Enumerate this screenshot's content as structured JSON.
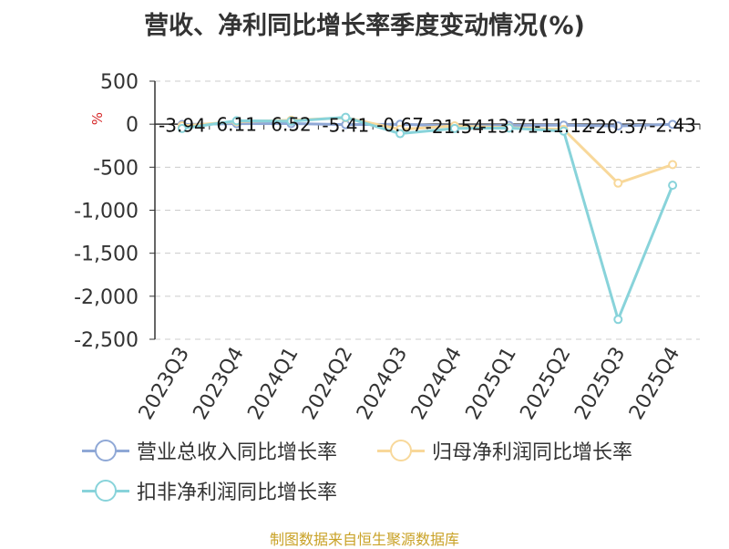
{
  "page": {
    "title": "营收、净利同比增长率季度变动情况(%)",
    "footer": "制图数据来自恒生聚源数据库"
  },
  "chart_data": {
    "type": "line",
    "title": "营收、净利同比增长率季度变动情况(%)",
    "ylabel": "%",
    "categories": [
      "2023Q3",
      "2023Q4",
      "2024Q1",
      "2024Q2",
      "2024Q3",
      "2024Q4",
      "2025Q1",
      "2025Q2",
      "2025Q3",
      "2025Q4"
    ],
    "ylim": [
      -2500,
      500
    ],
    "yticks": [
      500,
      0,
      -500,
      -1000,
      -1500,
      -2000,
      -2500
    ],
    "ytick_labels": [
      "500",
      "0",
      "-500",
      "-1,000",
      "-1,500",
      "-2,000",
      "-2,500"
    ],
    "grid": true,
    "legend_position": "bottom",
    "series": [
      {
        "name": "营业总收入同比增长率",
        "color": "#8fa8d6",
        "values": [
          -3.94,
          6.11,
          6.52,
          -5.41,
          -0.67,
          -21.54,
          -13.71,
          -11.12,
          -20.37,
          -2.43
        ],
        "labels": [
          "-3.94",
          "6.11",
          "6.52",
          "-5.41",
          "-0.67",
          "-21.54",
          "-13.71",
          "-11.12",
          "-20.37",
          "-2.43"
        ]
      },
      {
        "name": "归母净利润同比增长率",
        "color": "#f8d89a",
        "values": [
          -20,
          30,
          45,
          75,
          -60,
          -20,
          -40,
          -60,
          -685,
          -470
        ]
      },
      {
        "name": "扣非净利润同比增长率",
        "color": "#88d3da",
        "values": [
          -50,
          40,
          35,
          80,
          -110,
          -50,
          -45,
          -80,
          -2270,
          -710
        ]
      }
    ]
  }
}
